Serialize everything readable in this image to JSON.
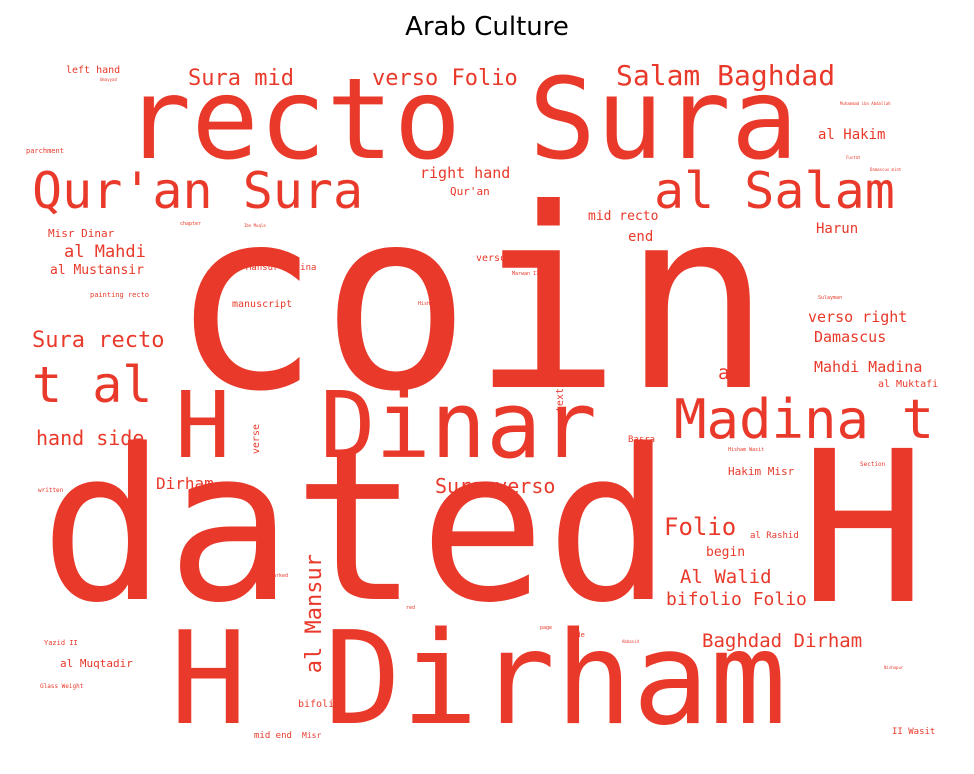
{
  "title": "Arab Culture",
  "word_color": "#e8392a",
  "words": [
    "coin",
    "dated",
    "H",
    "recto Sura",
    "Dinar",
    "H Dirham",
    "H",
    "Qur'an Sura",
    "al Salam",
    "Madina t",
    "t al",
    "Salam Baghdad",
    "Sura mid",
    "verso Folio",
    "Sura recto",
    "hand side",
    "Sura verso",
    "Folio",
    "Al Walid",
    "bifolio Folio",
    "Baghdad Dirham",
    "al Mansur",
    "al Mahdi",
    "al Mustansir",
    "Misr Dinar",
    "right hand",
    "Qur'an",
    "mid recto",
    "end",
    "Harun",
    "al Hakim",
    "verso right",
    "Damascus",
    "Mahdi Madina",
    "al Muktafi",
    "al",
    "Dirham",
    "Hakim Misr",
    "begin",
    "al Rashid",
    "al Muqtadir",
    "bifolio",
    "mid end",
    "Misr",
    "left hand",
    "parchment",
    "manuscript",
    "Mansur Madina",
    "verso left",
    "painting recto",
    "verse",
    "text",
    "Basra",
    "Section",
    "Yazid II",
    "II Wasit",
    "Glass Weight",
    "written",
    "chapter",
    "Sulayman",
    "Hisham",
    "Marwan II",
    "marked",
    "red",
    "page",
    "side",
    "Hisham Wasit",
    "Umayyad",
    "Abbasid",
    "Damascus mint",
    "Muhammad ibn Abdallah",
    "Ibn Muqla",
    "Fustat",
    "al Qadir",
    "Nishapur"
  ]
}
